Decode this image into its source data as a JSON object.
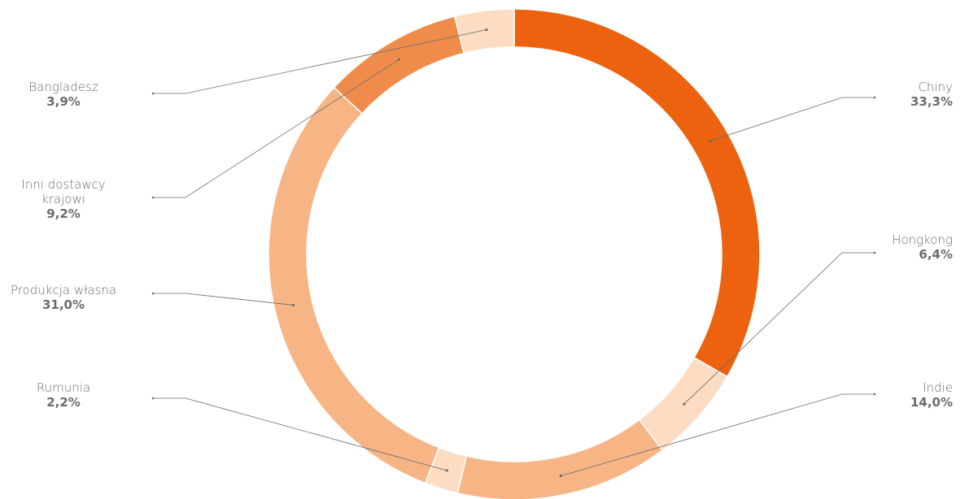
{
  "chart_data": {
    "type": "pie",
    "variant": "donut",
    "legend": "none",
    "slices": [
      {
        "label": "Chiny",
        "value": 33.3,
        "value_text": "33,3%",
        "color": "#ec620f"
      },
      {
        "label": "Hongkong",
        "value": 6.4,
        "value_text": "6,4%",
        "color": "#fcdcc2"
      },
      {
        "label": "Indie",
        "value": 14.0,
        "value_text": "14,0%",
        "color": "#f7b586"
      },
      {
        "label": "Rumunia",
        "value": 2.2,
        "value_text": "2,2%",
        "color": "#fcdcc2"
      },
      {
        "label": "Produkcja własna",
        "value": 31.0,
        "value_text": "31,0%",
        "color": "#f7b586"
      },
      {
        "label_lines": [
          "Inni dostawcy",
          "krajowi"
        ],
        "value": 9.2,
        "value_text": "9,2%",
        "color": "#f08c4b"
      },
      {
        "label": "Bangladesz",
        "value": 3.9,
        "value_text": "3,9%",
        "color": "#fcdcc2"
      }
    ]
  }
}
